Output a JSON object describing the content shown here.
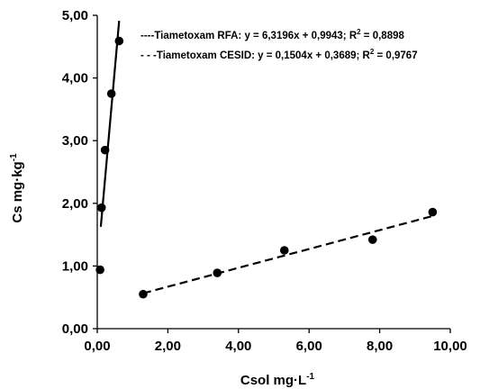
{
  "chart_data": {
    "type": "scatter",
    "xlabel": "Csol mg·L",
    "xlabel_sup": "-1",
    "ylabel": "Cs mg·kg",
    "ylabel_sup": "-1",
    "xlim": [
      0,
      10
    ],
    "ylim": [
      0,
      5
    ],
    "x_ticks": [
      0,
      2,
      4,
      6,
      8,
      10
    ],
    "y_ticks": [
      0,
      1,
      2,
      3,
      4,
      5
    ],
    "x_tick_labels": [
      "0,00",
      "2,00",
      "4,00",
      "6,00",
      "8,00",
      "10,00"
    ],
    "y_tick_labels": [
      "0,00",
      "1,00",
      "2,00",
      "3,00",
      "4,00",
      "5,00"
    ],
    "grid": false,
    "legend_position": "top-right",
    "series": [
      {
        "name": "Tiametoxam RFA",
        "points": [
          {
            "x": 0.08,
            "y": 0.94
          },
          {
            "x": 0.12,
            "y": 1.93
          },
          {
            "x": 0.22,
            "y": 2.85
          },
          {
            "x": 0.4,
            "y": 3.75
          },
          {
            "x": 0.62,
            "y": 4.59
          }
        ],
        "trendline": {
          "slope": 6.3196,
          "intercept": 0.9943,
          "x_range": [
            0.1,
            0.62
          ],
          "style": "solid"
        },
        "legend_prefix": "----",
        "equation": "y = 6,3196x + 0,9943;",
        "r2_prefix": "R",
        "r2_sup": "2",
        "r2_value": " = 0,8898"
      },
      {
        "name": "Tiametoxam CESID",
        "points": [
          {
            "x": 1.3,
            "y": 0.55
          },
          {
            "x": 3.4,
            "y": 0.89
          },
          {
            "x": 5.3,
            "y": 1.25
          },
          {
            "x": 7.8,
            "y": 1.42
          },
          {
            "x": 9.5,
            "y": 1.86
          }
        ],
        "trendline": {
          "slope": 0.1504,
          "intercept": 0.3689,
          "x_range": [
            1.3,
            9.5
          ],
          "style": "dashed"
        },
        "legend_prefix": "- - -",
        "equation": "y = 0,1504x + 0,3689;",
        "r2_prefix": "R",
        "r2_sup": "2",
        "r2_value": " = 0,9767"
      }
    ],
    "colors": {
      "marker": "#000000",
      "line": "#000000",
      "axis": "#000000"
    }
  }
}
